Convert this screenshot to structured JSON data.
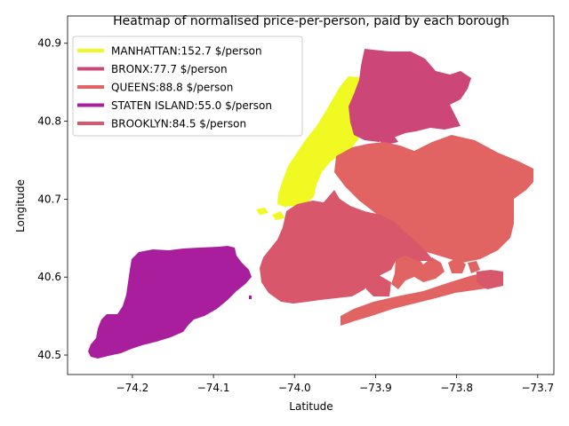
{
  "chart_data": {
    "type": "heatmap",
    "title": "Heatmap of normalised price-per-person, paid by each borough",
    "xlabel": "Latitude",
    "ylabel": "Longitude",
    "xlim": [
      -74.28,
      -73.68
    ],
    "ylim": [
      40.475,
      40.935
    ],
    "x_ticks": [
      -74.2,
      -74.1,
      -74.0,
      -73.9,
      -73.8,
      -73.7
    ],
    "x_tick_labels": [
      "−74.2",
      "−74.1",
      "−74.0",
      "−73.9",
      "−73.8",
      "−73.7"
    ],
    "y_ticks": [
      40.5,
      40.6,
      40.7,
      40.8,
      40.9
    ],
    "y_tick_labels": [
      "40.5",
      "40.6",
      "40.7",
      "40.8",
      "40.9"
    ],
    "grid": false,
    "legend_position": "top-left",
    "series": [
      {
        "name": "MANHATTAN:152.7 $/person",
        "borough": "MANHATTAN",
        "value": 152.7,
        "color": "#f0f921"
      },
      {
        "name": "BRONX:77.7 $/person",
        "borough": "BRONX",
        "value": 77.7,
        "color": "#cc4778"
      },
      {
        "name": "QUEENS:88.8 $/person",
        "borough": "QUEENS",
        "value": 88.8,
        "color": "#e16462"
      },
      {
        "name": "STATEN ISLAND:55.0 $/person",
        "borough": "STATEN ISLAND",
        "value": 55.0,
        "color": "#a91e9d"
      },
      {
        "name": "BROOKLYN:84.5 $/person",
        "borough": "BROOKLYN",
        "value": 84.5,
        "color": "#d8576b"
      }
    ]
  }
}
